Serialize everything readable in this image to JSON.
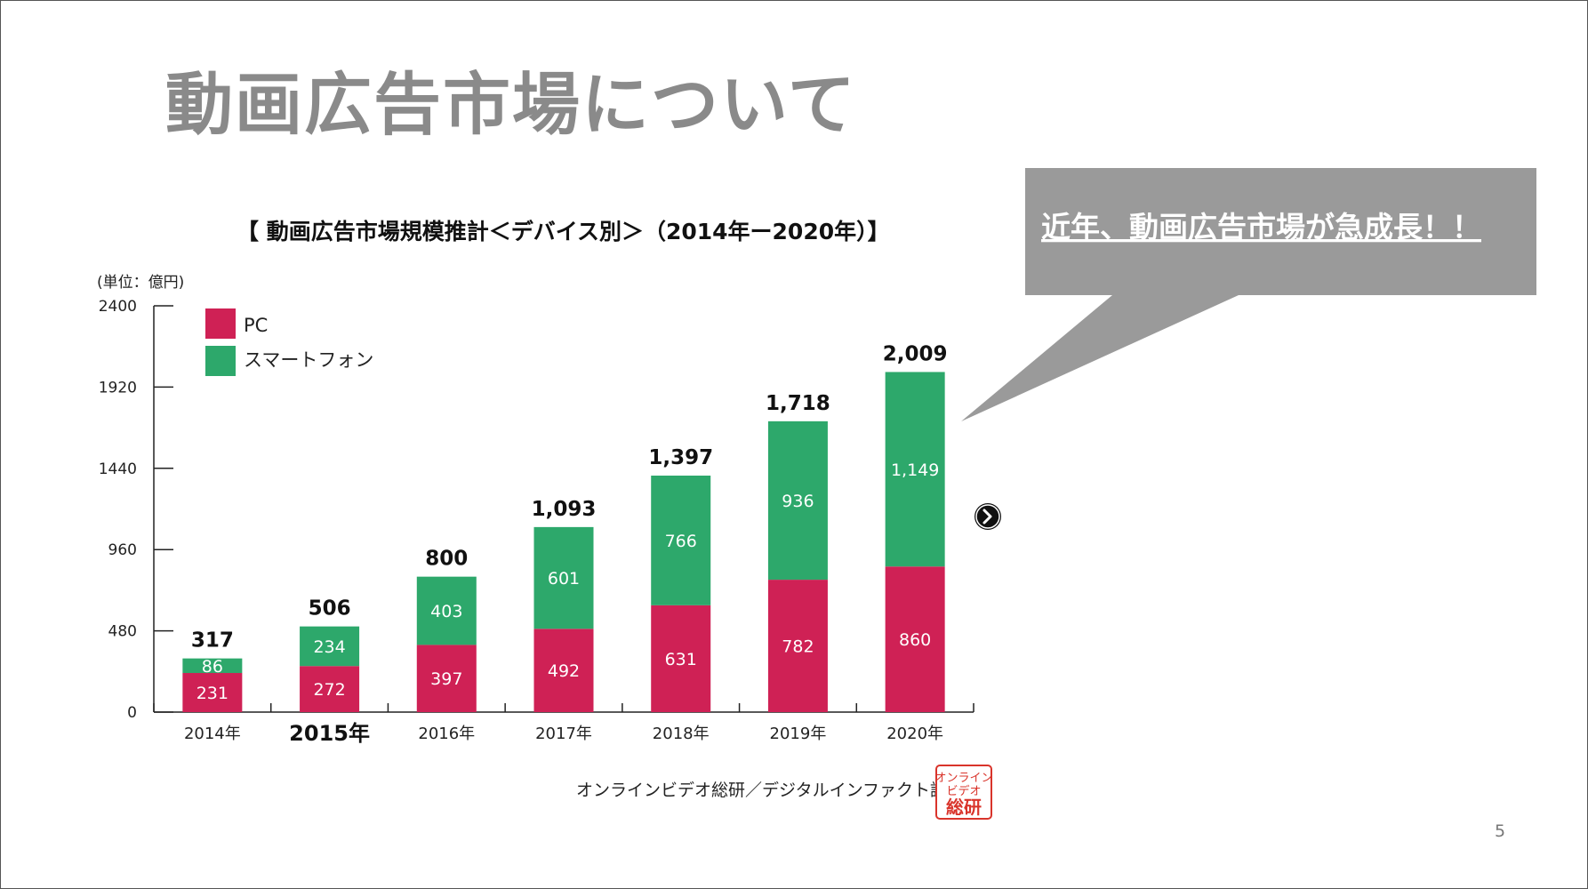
{
  "slide": {
    "title": "動画広告市場について",
    "page_number": "5",
    "callout_text": "近年、動画広告市場が急成長！！",
    "source": "オンラインビデオ総研／デジタルインファクト調べ",
    "logo_text": [
      "オンライン",
      "ビデオ",
      "総研"
    ]
  },
  "colors": {
    "pc": "#cf2155",
    "smartphone": "#2da86b",
    "callout": "#9a9a9a",
    "logo_red": "#d9342b"
  },
  "icons": {
    "next": "chevron-right-circle-icon"
  },
  "chart_data": {
    "type": "bar",
    "stacked": true,
    "title": "【 動画広告市場規模推計＜デバイス別＞（2014年ー2020年）】",
    "unit": "(単位：億円)",
    "categories": [
      "2014年",
      "2015年",
      "2016年",
      "2017年",
      "2018年",
      "2019年",
      "2020年"
    ],
    "highlight_category": "2015年",
    "series": [
      {
        "name": "PC",
        "values": [
          231,
          272,
          397,
          492,
          631,
          782,
          860
        ]
      },
      {
        "name": "スマートフォン",
        "values": [
          86,
          234,
          403,
          601,
          766,
          936,
          1149
        ]
      }
    ],
    "totals": [
      "317",
      "506",
      "800",
      "1,093",
      "1,397",
      "1,718",
      "2,009"
    ],
    "segment_labels": {
      "PC": [
        "231",
        "272",
        "397",
        "492",
        "631",
        "782",
        "860"
      ],
      "スマートフォン": [
        "86",
        "234",
        "403",
        "601",
        "766",
        "936",
        "1,149"
      ]
    },
    "ylim": [
      0,
      2400
    ],
    "yticks": [
      0,
      480,
      960,
      1440,
      1920,
      2400
    ],
    "legend_position": "top-left",
    "grid": false
  }
}
